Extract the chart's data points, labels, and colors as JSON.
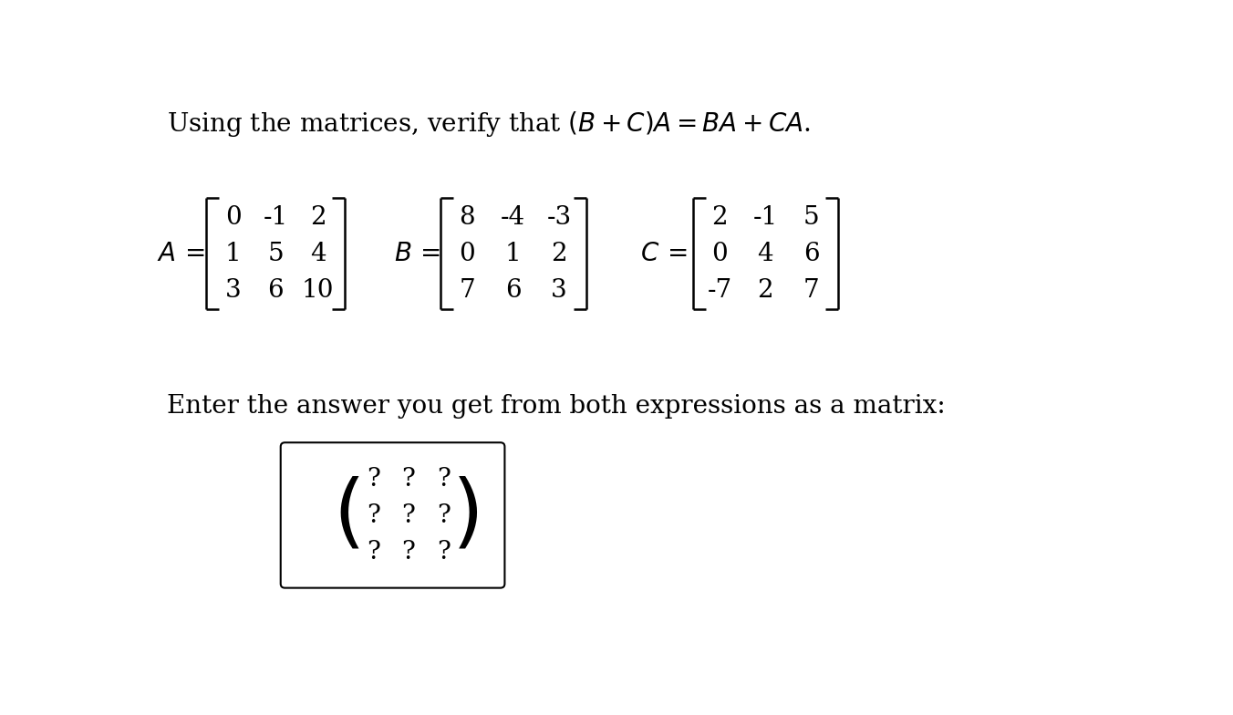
{
  "title_text": "Using the matrices, verify that $(B+C)A = BA+CA$.",
  "A_matrix": [
    [
      0,
      -1,
      2
    ],
    [
      1,
      5,
      4
    ],
    [
      3,
      6,
      10
    ]
  ],
  "B_matrix": [
    [
      8,
      -4,
      -3
    ],
    [
      0,
      1,
      2
    ],
    [
      7,
      6,
      3
    ]
  ],
  "C_matrix": [
    [
      2,
      -1,
      5
    ],
    [
      0,
      4,
      6
    ],
    [
      -7,
      2,
      7
    ]
  ],
  "answer_prompt": "Enter the answer you get from both expressions as a matrix:",
  "answer_matrix": [
    [
      "?",
      "?",
      "?"
    ],
    [
      "?",
      "?",
      "?"
    ],
    [
      "?",
      "?",
      "?"
    ]
  ],
  "bg_color": "#ffffff",
  "text_color": "#000000",
  "title_fontsize": 20,
  "matrix_fontsize": 20,
  "prompt_fontsize": 20
}
